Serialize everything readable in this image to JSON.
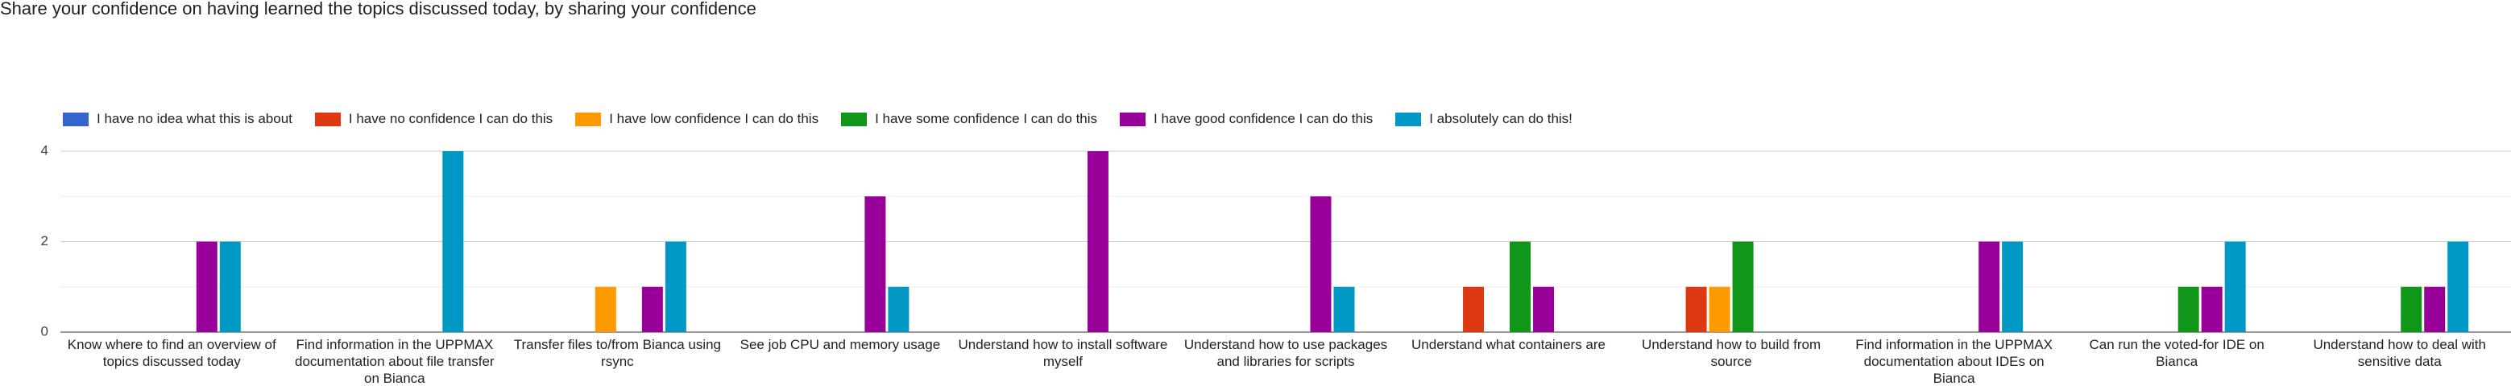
{
  "chart_data": {
    "type": "bar",
    "title": "Share your confidence on having learned the topics discussed today, by sharing your confidence",
    "categories": [
      "Know where to find an overview of topics discussed today",
      "Find information in the UPPMAX documentation about file transfer on Bianca",
      "Transfer files to/from Bianca using rsync",
      "See job CPU and memory usage",
      "Understand how to install software myself",
      "Understand how to use packages and libraries for scripts",
      "Understand what containers are",
      "Understand how to build from source",
      "Find information in the UPPMAX documentation about IDEs on Bianca",
      "Can run the voted-for IDE on Bianca",
      "Understand how to deal with sensitive data"
    ],
    "series": [
      {
        "name": "I have no idea what this is about",
        "color": "#3366cc",
        "values": [
          0,
          0,
          0,
          0,
          0,
          0,
          0,
          0,
          0,
          0,
          0
        ]
      },
      {
        "name": "I have no confidence I can do this",
        "color": "#dc3912",
        "values": [
          0,
          0,
          0,
          0,
          0,
          0,
          1,
          1,
          0,
          0,
          0
        ]
      },
      {
        "name": "I have low confidence I can do this",
        "color": "#ff9900",
        "values": [
          0,
          0,
          1,
          0,
          0,
          0,
          0,
          1,
          0,
          0,
          0
        ]
      },
      {
        "name": "I have some confidence I can do this",
        "color": "#109618",
        "values": [
          0,
          0,
          0,
          0,
          0,
          0,
          2,
          2,
          0,
          1,
          1
        ]
      },
      {
        "name": "I have good confidence I can do this",
        "color": "#990099",
        "values": [
          2,
          0,
          1,
          3,
          4,
          3,
          1,
          0,
          2,
          1,
          1
        ]
      },
      {
        "name": "I absolutely can do this!",
        "color": "#0099c6",
        "values": [
          2,
          4,
          2,
          1,
          0,
          1,
          0,
          0,
          2,
          2,
          2
        ]
      }
    ],
    "ylim": [
      0,
      4
    ],
    "yticks": [
      0,
      2,
      4
    ],
    "minor_yticks": [
      1,
      3
    ],
    "grid": true,
    "legend": "top"
  }
}
